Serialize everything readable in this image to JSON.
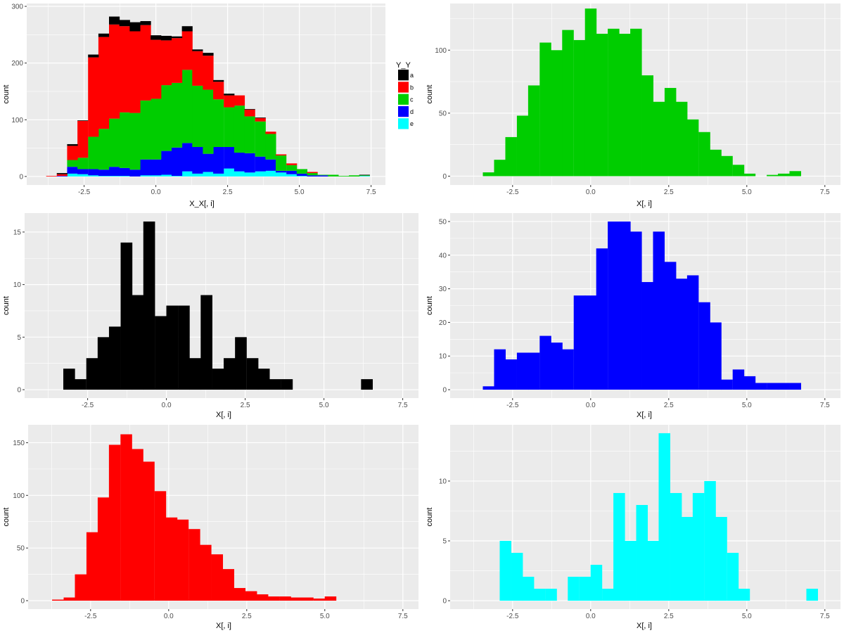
{
  "figure": {
    "background": "#ffffff",
    "panel_background": "#ebebeb",
    "grid_color": "#ffffff"
  },
  "chart_data": [
    {
      "type": "bar",
      "stacked": true,
      "xlabel": "X_X[, i]",
      "ylabel": "count",
      "xlim": [
        -4.5,
        8.0
      ],
      "ylim": [
        -15,
        305
      ],
      "xticks": [
        -2.5,
        0.0,
        2.5,
        5.0,
        7.5
      ],
      "xtick_labels": [
        "-2.5",
        "0.0",
        "2.5",
        "5.0",
        "7.5"
      ],
      "yticks": [
        0,
        100,
        200,
        300
      ],
      "ytick_labels": [
        "0",
        "100",
        "200",
        "300"
      ],
      "grid": true,
      "legend": {
        "title": "Y_Y",
        "placement": "right"
      },
      "bin_width": 0.365,
      "x": [
        -4.0,
        -3.64,
        -3.27,
        -2.91,
        -2.55,
        -2.18,
        -1.82,
        -1.45,
        -1.09,
        -0.73,
        -0.36,
        0.0,
        0.36,
        0.73,
        1.09,
        1.45,
        1.82,
        2.18,
        2.55,
        2.91,
        3.27,
        3.64,
        4.0,
        4.36,
        4.73,
        5.09,
        5.45,
        5.82,
        6.18,
        6.55,
        6.91,
        7.27,
        7.64
      ],
      "series": [
        {
          "name": "e",
          "color": "#00ffff",
          "values": [
            0,
            0,
            0,
            5,
            4,
            2,
            1,
            1,
            1,
            0,
            2,
            2,
            3,
            1,
            9,
            5,
            8,
            5,
            14,
            9,
            7,
            9,
            10,
            7,
            4,
            1,
            0,
            0,
            0,
            0,
            0,
            1,
            0
          ]
        },
        {
          "name": "d",
          "color": "#0000ff",
          "values": [
            0,
            0,
            1,
            12,
            9,
            11,
            11,
            16,
            14,
            12,
            28,
            28,
            42,
            50,
            50,
            47,
            32,
            47,
            38,
            33,
            34,
            26,
            20,
            3,
            6,
            4,
            2,
            2,
            0,
            0,
            0,
            0,
            0
          ]
        },
        {
          "name": "c",
          "color": "#00cd00",
          "values": [
            0,
            0,
            0,
            12,
            20,
            57,
            72,
            85,
            98,
            100,
            104,
            107,
            116,
            114,
            129,
            108,
            113,
            84,
            70,
            83,
            65,
            62,
            45,
            27,
            10,
            8,
            4,
            1,
            3,
            1,
            2,
            1,
            0
          ]
        },
        {
          "name": "b",
          "color": "#ff0000",
          "values": [
            0,
            1,
            3,
            25,
            65,
            140,
            162,
            166,
            152,
            144,
            133,
            104,
            79,
            79,
            68,
            61,
            60,
            31,
            21,
            18,
            12,
            6,
            4,
            2,
            3,
            0,
            2,
            0,
            0,
            0,
            0,
            0,
            0
          ]
        },
        {
          "name": "a",
          "color": "#000000",
          "values": [
            0,
            0,
            2,
            3,
            1,
            5,
            6,
            14,
            11,
            16,
            7,
            8,
            8,
            3,
            9,
            3,
            5,
            3,
            3,
            0,
            1,
            1,
            0,
            0,
            0,
            0,
            0,
            0,
            0,
            0,
            0,
            1,
            0
          ]
        }
      ]
    },
    {
      "type": "bar",
      "xlabel": "X[, i]",
      "ylabel": "count",
      "color": "#00cd00",
      "xlim": [
        -4.5,
        8.0
      ],
      "ylim": [
        -7,
        137
      ],
      "xticks": [
        -2.5,
        0.0,
        2.5,
        5.0,
        7.5
      ],
      "xtick_labels": [
        "-2.5",
        "0.0",
        "2.5",
        "5.0",
        "7.5"
      ],
      "yticks": [
        0,
        50,
        100
      ],
      "ytick_labels": [
        "0",
        "50",
        "100"
      ],
      "grid": true,
      "bin_width": 0.365,
      "x": [
        -3.27,
        -2.91,
        -2.55,
        -2.18,
        -1.82,
        -1.45,
        -1.09,
        -0.73,
        -0.36,
        0.0,
        0.36,
        0.73,
        1.09,
        1.45,
        1.82,
        2.18,
        2.55,
        2.91,
        3.27,
        3.64,
        4.0,
        4.36,
        4.73,
        5.09,
        5.45,
        5.82,
        6.18,
        6.55
      ],
      "values": [
        3,
        13,
        31,
        48,
        72,
        106,
        100,
        116,
        108,
        133,
        113,
        117,
        113,
        117,
        80,
        59,
        70,
        59,
        45,
        35,
        21,
        16,
        9,
        2,
        0,
        1,
        2,
        4
      ]
    },
    {
      "type": "bar",
      "xlabel": "X[, i]",
      "ylabel": "count",
      "color": "#000000",
      "xlim": [
        -4.5,
        8.0
      ],
      "ylim": [
        -0.8,
        16.8
      ],
      "xticks": [
        -2.5,
        0.0,
        2.5,
        5.0,
        7.5
      ],
      "xtick_labels": [
        "-2.5",
        "0.0",
        "2.5",
        "5.0",
        "7.5"
      ],
      "yticks": [
        0,
        5,
        10,
        15
      ],
      "ytick_labels": [
        "0",
        "5",
        "10",
        "15"
      ],
      "grid": true,
      "bin_width": 0.365,
      "x": [
        -3.09,
        -2.73,
        -2.36,
        -2.0,
        -1.64,
        -1.27,
        -0.91,
        -0.55,
        -0.18,
        0.18,
        0.55,
        0.91,
        1.27,
        1.64,
        2.0,
        2.36,
        2.73,
        3.09,
        3.45,
        3.82,
        4.18,
        4.55,
        4.91,
        5.27,
        5.64,
        6.0,
        6.36
      ],
      "values": [
        2,
        1,
        3,
        5,
        6,
        14,
        9,
        16,
        7,
        8,
        8,
        3,
        9,
        2,
        3,
        5,
        3,
        2,
        1,
        1,
        0,
        0,
        0,
        0,
        0,
        0,
        1
      ]
    },
    {
      "type": "bar",
      "xlabel": "X[, i]",
      "ylabel": "count",
      "color": "#0000ff",
      "xlim": [
        -4.5,
        8.0
      ],
      "ylim": [
        -2.5,
        52.5
      ],
      "xticks": [
        -2.5,
        0.0,
        2.5,
        5.0,
        7.5
      ],
      "xtick_labels": [
        "-2.5",
        "0.0",
        "2.5",
        "5.0",
        "7.5"
      ],
      "yticks": [
        0,
        10,
        20,
        30,
        40,
        50
      ],
      "ytick_labels": [
        "0",
        "10",
        "20",
        "30",
        "40",
        "50"
      ],
      "grid": true,
      "bin_width": 0.365,
      "x": [
        -3.27,
        -2.91,
        -2.55,
        -2.18,
        -1.82,
        -1.45,
        -1.09,
        -0.73,
        -0.36,
        0.0,
        0.36,
        0.73,
        1.09,
        1.45,
        1.82,
        2.18,
        2.55,
        2.91,
        3.27,
        3.64,
        4.0,
        4.36,
        4.73,
        5.09,
        5.45,
        5.82,
        6.18,
        6.55
      ],
      "values": [
        1,
        12,
        9,
        11,
        11,
        16,
        14,
        12,
        28,
        28,
        42,
        50,
        50,
        47,
        32,
        47,
        38,
        33,
        34,
        26,
        20,
        3,
        6,
        4,
        2,
        2,
        2,
        2
      ]
    },
    {
      "type": "bar",
      "xlabel": "X[, i]",
      "ylabel": "count",
      "color": "#ff0000",
      "xlim": [
        -4.5,
        8.0
      ],
      "ylim": [
        -8,
        167
      ],
      "xticks": [
        -2.5,
        0.0,
        2.5,
        5.0,
        7.5
      ],
      "xtick_labels": [
        "-2.5",
        "0.0",
        "2.5",
        "5.0",
        "7.5"
      ],
      "yticks": [
        0,
        50,
        100,
        150
      ],
      "ytick_labels": [
        "0",
        "50",
        "100",
        "150"
      ],
      "grid": true,
      "bin_width": 0.365,
      "x": [
        -3.55,
        -3.18,
        -2.82,
        -2.45,
        -2.09,
        -1.73,
        -1.36,
        -1.0,
        -0.64,
        -0.27,
        0.09,
        0.45,
        0.82,
        1.18,
        1.55,
        1.91,
        2.27,
        2.64,
        3.0,
        3.36,
        3.73,
        4.09,
        4.45,
        4.82,
        5.18
      ],
      "values": [
        1,
        3,
        25,
        65,
        98,
        148,
        158,
        144,
        132,
        104,
        79,
        77,
        68,
        53,
        44,
        30,
        12,
        9,
        6,
        4,
        4,
        3,
        3,
        2,
        4
      ]
    },
    {
      "type": "bar",
      "xlabel": "X[, i]",
      "ylabel": "count",
      "color": "#00ffff",
      "xlim": [
        -4.5,
        8.0
      ],
      "ylim": [
        -0.7,
        14.7
      ],
      "xticks": [
        -2.5,
        0.0,
        2.5,
        5.0,
        7.5
      ],
      "xtick_labels": [
        "-2.5",
        "0.0",
        "2.5",
        "5.0",
        "7.5"
      ],
      "yticks": [
        0,
        5,
        10
      ],
      "ytick_labels": [
        "0",
        "5",
        "10"
      ],
      "grid": true,
      "bin_width": 0.365,
      "x": [
        -2.73,
        -2.36,
        -2.0,
        -1.64,
        -1.27,
        -0.91,
        -0.55,
        -0.18,
        0.18,
        0.55,
        0.91,
        1.27,
        1.64,
        2.0,
        2.36,
        2.73,
        3.09,
        3.45,
        3.82,
        4.18,
        4.55,
        4.91,
        5.27,
        5.64,
        6.0,
        6.36,
        6.73,
        7.09
      ],
      "values": [
        5,
        4,
        2,
        1,
        1,
        0,
        2,
        2,
        3,
        1,
        9,
        5,
        8,
        5,
        14,
        9,
        7,
        9,
        10,
        7,
        4,
        1,
        0,
        0,
        0,
        0,
        0,
        1
      ]
    }
  ]
}
